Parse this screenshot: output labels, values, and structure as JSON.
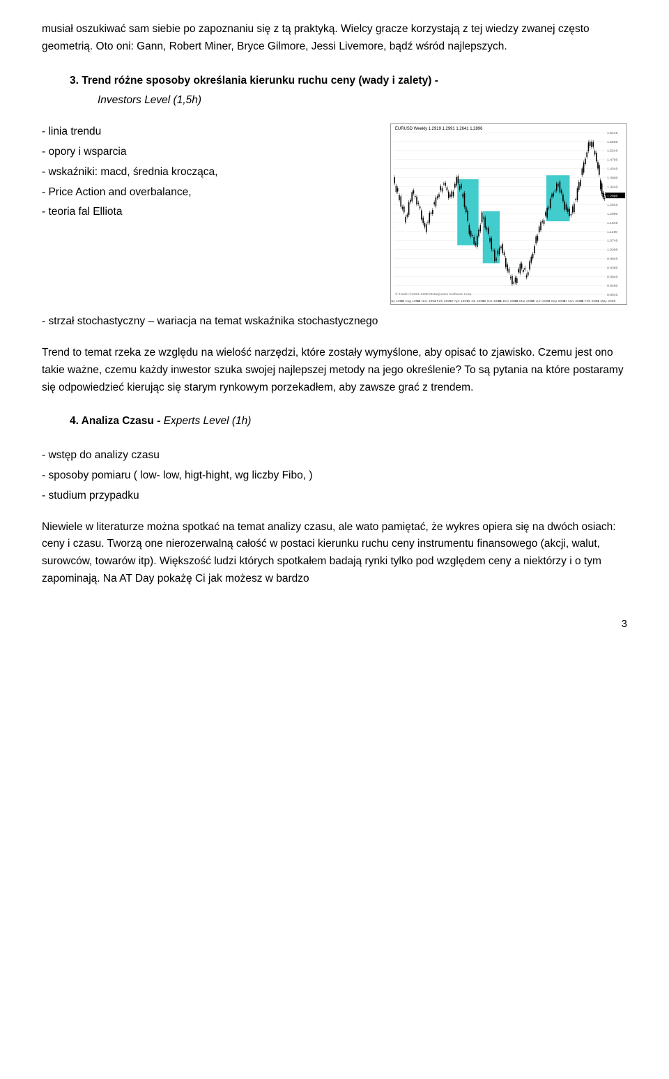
{
  "intro_para": "musiał oszukiwać sam siebie po zapoznaniu się z tą praktyką. Wielcy gracze korzystają z tej wiedzy zwanej często geometrią. Oto oni: Gann, Robert Miner, Bryce Gilmore, Jessi Livemore, bądź wśród najlepszych.",
  "section3": {
    "num": "3.",
    "title_bold": "Trend różne sposoby określania kierunku ruchu ceny (wady i zalety) -",
    "title_italic": "Investors Level (1,5h)"
  },
  "bullets3": [
    "- linia trendu",
    "- opory i wsparcia",
    "- wskaźniki: macd, średnia krocząca,",
    "- Price Action and overbalance,",
    "- teoria fal Elliota",
    "- strzał stochastyczny – wariacja na temat wskaźnika stochastycznego"
  ],
  "chart": {
    "title": "EURUSD Weekly  1.2919 1.2991 1.2641 1.2896",
    "footer": "© Trader.©2001-2008 MetaQuotes Software Corp.",
    "xlabels": [
      "31 May 1992",
      "22 Aug 1993",
      "13 Nov 1994",
      "4 Feb 1996",
      "27 Apr 1997",
      "19 Jul 1998",
      "10 Oct 1999",
      "31 Dec 2000",
      "24 Mar 2002",
      "15 Jun 2003",
      "5 Sep 2004",
      "27 Nov 2005",
      "18 Feb 2007",
      "11 May 2008"
    ],
    "yticks": [
      "1.6140",
      "1.5690",
      "1.5240",
      "1.4790",
      "1.4340",
      "1.3890",
      "1.3440",
      "1.2990",
      "1.2540",
      "1.2090",
      "1.1640",
      "1.1190",
      "1.0740",
      "1.0290",
      "0.9840",
      "0.9390",
      "0.8940",
      "0.8490",
      "0.8040"
    ],
    "background": "#ffffff",
    "grid_color": "#e8e8e8",
    "candle_up": "#000000",
    "candle_down": "#000000",
    "highlight_boxes_color": "#2ec6c6",
    "title_fontsize": 6,
    "tick_fontsize": 5
  },
  "trend_para": "Trend to temat rzeka ze względu na wielość narzędzi, które zostały wymyślone, aby opisać to zjawisko. Czemu jest ono takie ważne, czemu każdy inwestor szuka swojej najlepszej metody na jego określenie? To są pytania na które postaramy się odpowiedzieć kierując się starym rynkowym porzekadłem, aby zawsze grać z trendem.",
  "section4": {
    "num": "4.",
    "title_bold": "Analiza Czasu -",
    "title_italic": "Experts Level (1h)"
  },
  "bullets4": [
    "- wstęp do analizy czasu",
    "- sposoby pomiaru ( low- low, higt-hight, wg liczby Fibo, )",
    "- studium przypadku"
  ],
  "time_para": "Niewiele w literaturze można spotkać na temat analizy czasu, ale wato pamiętać, że wykres opiera się na dwóch osiach: ceny i czasu. Tworzą one nierozerwalną całość w postaci kierunku ruchu ceny instrumentu finansowego (akcji, walut, surowców, towarów itp). Większość ludzi których spotkałem badają rynki tylko pod względem ceny a niektórzy i o tym zapominają. Na AT Day pokażę Ci jak możesz w bardzo",
  "page_number": "3"
}
